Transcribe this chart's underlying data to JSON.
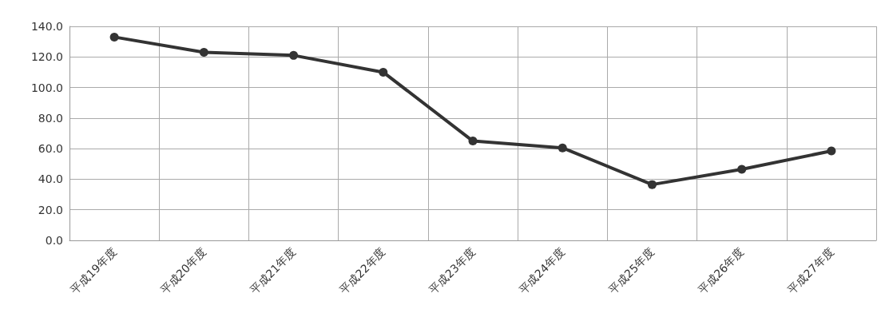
{
  "chart_data": {
    "type": "line",
    "categories": [
      "平成19年度",
      "平成20年度",
      "平成21年度",
      "平成22年度",
      "平成23年度",
      "平成24年度",
      "平成25年度",
      "平成26年度",
      "平成27年度"
    ],
    "series": [
      {
        "color": "#333333",
        "values": [
          133,
          123,
          121,
          110,
          65,
          60.5,
          36.5,
          46.5,
          58.5
        ]
      }
    ],
    "ylim": [
      0,
      140
    ],
    "yticks": [
      {
        "value": 0,
        "label": "0.0"
      },
      {
        "value": 20,
        "label": "20.0"
      },
      {
        "value": 40,
        "label": "40.0"
      },
      {
        "value": 60,
        "label": "60.0"
      },
      {
        "value": 80,
        "label": "80.0"
      },
      {
        "value": 100,
        "label": "100.0"
      },
      {
        "value": 120,
        "label": "120.0"
      },
      {
        "value": 140,
        "label": "140.0"
      }
    ],
    "grid": true,
    "marker": "circle",
    "line_style": "solid"
  }
}
